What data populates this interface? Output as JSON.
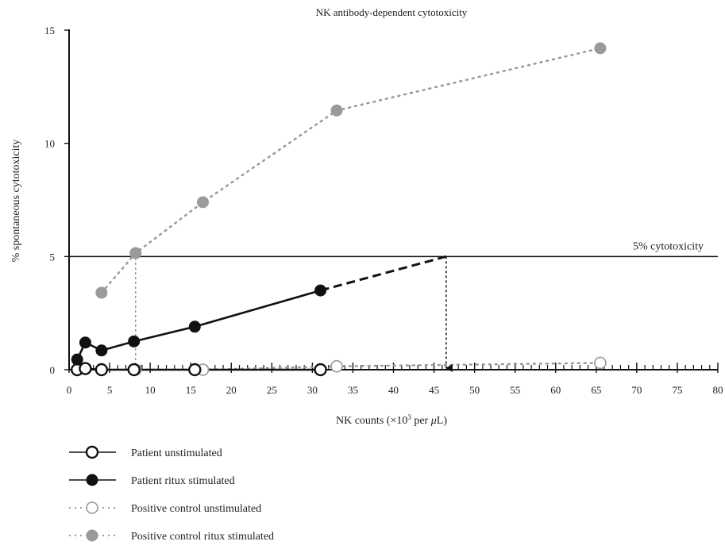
{
  "chart_data": {
    "type": "line",
    "title": "NK antibody-dependent cytotoxicity",
    "xlabel_prefix": "NK counts (×10",
    "xlabel_sup": "3",
    "xlabel_mid": " per ",
    "xlabel_mu": "μ",
    "xlabel_suffix": "L)",
    "ylabel": "% spontaneous cytotoxicity",
    "xlim": [
      0,
      80
    ],
    "ylim": [
      0,
      15
    ],
    "x_ticks": [
      0,
      5,
      10,
      15,
      20,
      25,
      30,
      35,
      40,
      45,
      50,
      55,
      60,
      65,
      70,
      75,
      80
    ],
    "y_ticks": [
      0,
      5,
      10,
      15
    ],
    "threshold": {
      "y": 5,
      "label": "5% cytotoxicity"
    },
    "series": [
      {
        "name": "Patient unstimulated",
        "style": "solid",
        "marker": "open",
        "color": "#111111",
        "x": [
          1,
          2,
          4,
          8,
          15.5,
          31
        ],
        "y": [
          0,
          0.05,
          0,
          0,
          0,
          0
        ]
      },
      {
        "name": "Patient ritux stimulated",
        "style": "solid",
        "marker": "filled",
        "color": "#111111",
        "x": [
          1,
          2,
          4,
          8,
          15.5,
          31
        ],
        "y": [
          0.45,
          1.2,
          0.85,
          1.25,
          1.9,
          3.5
        ]
      },
      {
        "name": "Positive control unstimulated",
        "style": "dotted",
        "marker": "open",
        "color": "#9a9a9a",
        "x": [
          4,
          8.2,
          16.5,
          33,
          65.5
        ],
        "y": [
          0,
          0,
          0,
          0.15,
          0.3
        ]
      },
      {
        "name": "Positive control ritux stimulated",
        "style": "dotted",
        "marker": "filled",
        "color": "#9a9a9a",
        "x": [
          4,
          8.2,
          16.5,
          33,
          65.5
        ],
        "y": [
          3.4,
          5.15,
          7.4,
          11.45,
          14.2
        ]
      }
    ],
    "extrapolation": {
      "x": [
        31,
        46.5
      ],
      "y": [
        3.5,
        5
      ],
      "style": "dashed",
      "color": "#111111"
    },
    "drop_arrows": [
      {
        "x": 8.2,
        "y_from": 5.15,
        "color": "#9a9a9a"
      },
      {
        "x": 46.5,
        "y_from": 5,
        "color": "#111111"
      }
    ],
    "legend_position": "bottom-left"
  }
}
